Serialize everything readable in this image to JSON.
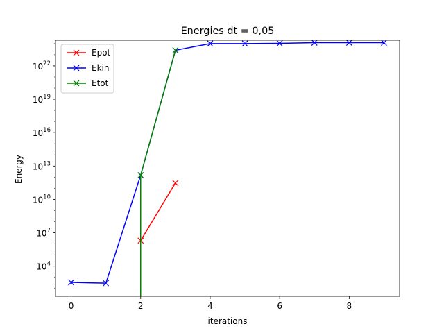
{
  "chart_data": {
    "type": "line",
    "title": "Energies dt = 0,05",
    "xlabel": "iterations",
    "ylabel": "Energy",
    "xlim": [
      -0.45,
      9.45
    ],
    "ylim": [
      20,
      2e+24
    ],
    "yscale": "log",
    "x_ticks": [
      0,
      2,
      4,
      6,
      8
    ],
    "x_tick_labels": [
      "0",
      "2",
      "4",
      "6",
      "8"
    ],
    "y_ticks": [
      10000.0,
      10000000.0,
      10000000000.0,
      10000000000000.0,
      1e+16,
      1e+19,
      1e+22
    ],
    "y_tick_bases": [
      "10",
      "10",
      "10",
      "10",
      "10",
      "10",
      "10"
    ],
    "y_tick_exponents": [
      "4",
      "7",
      "10",
      "13",
      "16",
      "19",
      "22"
    ],
    "grid": false,
    "legend": "upper-left",
    "series": [
      {
        "name": "Epot",
        "color": "#ff0000",
        "marker": "x",
        "x": [
          2,
          3
        ],
        "y": [
          2000000.0,
          300000000000.0
        ]
      },
      {
        "name": "Ekin",
        "color": "#0000ff",
        "marker": "x",
        "x": [
          0,
          1,
          2,
          3,
          4,
          5,
          6,
          7,
          8,
          9
        ],
        "y": [
          350,
          300,
          1500000000000.0,
          2.5e+23,
          1e+24,
          1e+24,
          1.05e+24,
          1.2e+24,
          1.2e+24,
          1.2e+24
        ]
      },
      {
        "name": "Etot",
        "color": "#008000",
        "marker": "x",
        "x": [
          2,
          2,
          3
        ],
        "y": [
          1,
          1500000000000.0,
          2.5e+23
        ],
        "visible_markers": [
          1,
          2
        ]
      }
    ]
  }
}
